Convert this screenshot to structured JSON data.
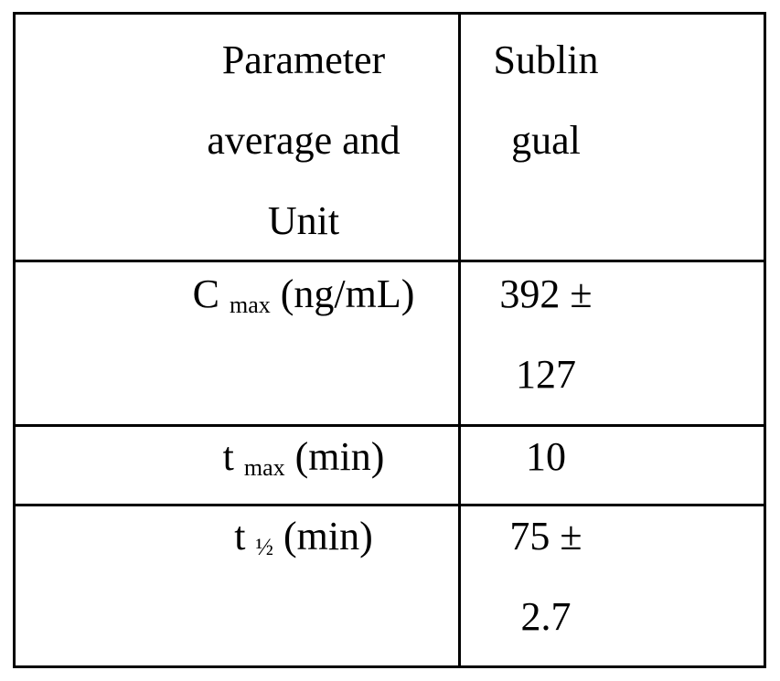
{
  "table": {
    "header": [
      [
        "Parameter",
        "average and",
        "Unit"
      ],
      [
        "Sublin",
        "gual"
      ]
    ],
    "rows": [
      {
        "parameter": {
          "symbol": "C",
          "subscript": "max",
          "unit": "(ng/mL)"
        },
        "value": [
          "392 ±",
          "127"
        ]
      },
      {
        "parameter": {
          "symbol": "t",
          "subscript": "max",
          "unit": "(min)"
        },
        "value": [
          "10"
        ]
      },
      {
        "parameter": {
          "symbol": "t",
          "subscript": "½",
          "unit": "(min)"
        },
        "value": [
          "75 ±",
          "2.7"
        ]
      }
    ]
  }
}
